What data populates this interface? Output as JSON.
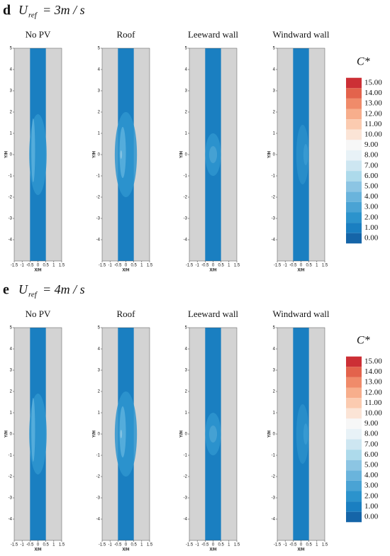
{
  "chart_data": {
    "type": "contour-panels",
    "rows": [
      {
        "letter": "d",
        "symbol": "U",
        "subscript": "ref",
        "equation": "= 3m / s",
        "panels": [
          "No PV",
          "Roof",
          "Leeward wall",
          "Windward wall"
        ]
      },
      {
        "letter": "e",
        "symbol": "U",
        "subscript": "ref",
        "equation": "= 4m / s",
        "panels": [
          "No PV",
          "Roof",
          "Leeward wall",
          "Windward wall"
        ]
      }
    ],
    "x_label": "X/H",
    "y_label": "Y/H",
    "xlim": [
      -1.5,
      1.5
    ],
    "ylim": [
      -5,
      5
    ],
    "xticks": [
      -1.5,
      -1,
      -0.5,
      0,
      0.5,
      1,
      1.5
    ],
    "yticks": [
      -4,
      -3,
      -2,
      -1,
      0,
      1,
      2,
      3,
      4,
      5
    ],
    "domain_x": [
      -0.5,
      0.5
    ],
    "background_color": "#d3d3d3",
    "colorbar": {
      "title": "C*",
      "levels": [
        {
          "value": 15,
          "label": "15.00"
        },
        {
          "value": 14,
          "label": "14.00"
        },
        {
          "value": 13,
          "label": "13.00"
        },
        {
          "value": 12,
          "label": "12.00"
        },
        {
          "value": 11,
          "label": "11.00"
        },
        {
          "value": 10,
          "label": "10.00"
        },
        {
          "value": 9,
          "label": "9.00"
        },
        {
          "value": 8,
          "label": "8.00"
        },
        {
          "value": 7,
          "label": "7.00"
        },
        {
          "value": 6,
          "label": "6.00"
        },
        {
          "value": 5,
          "label": "5.00"
        },
        {
          "value": 4,
          "label": "4.00"
        },
        {
          "value": 3,
          "label": "3.00"
        },
        {
          "value": 2,
          "label": "2.00"
        },
        {
          "value": 1,
          "label": "1.00"
        },
        {
          "value": 0,
          "label": "0.00"
        }
      ],
      "colors": [
        "#cc2f35",
        "#e3634c",
        "#f08b6a",
        "#f7ae8c",
        "#fbcbb0",
        "#fbe4d6",
        "#f7f7f7",
        "#e8f2f7",
        "#cde6f1",
        "#addaeb",
        "#8cc5e3",
        "#6ab4dc",
        "#4aa3d4",
        "#2c93cc",
        "#1a7fc1",
        "#1565a8"
      ]
    }
  }
}
